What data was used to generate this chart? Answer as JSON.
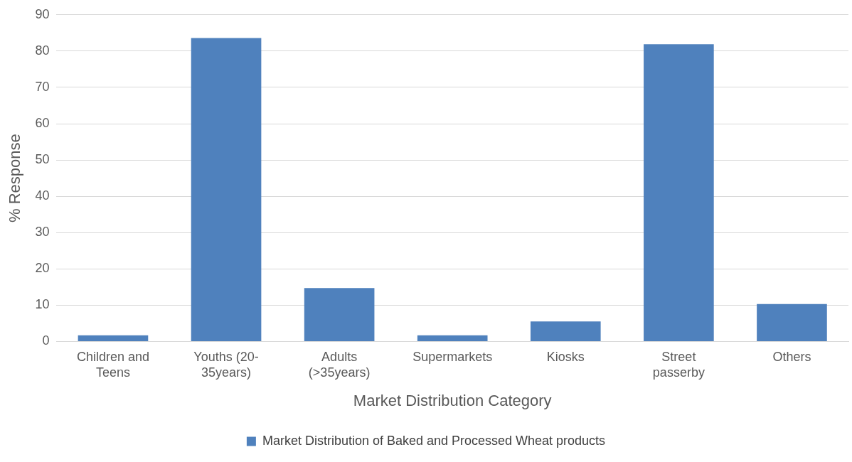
{
  "chart_data": {
    "type": "bar",
    "xlabel": "Market Distribution Category",
    "ylabel": "% Response",
    "categories": [
      "Children and Teens",
      "Youths (20-35years)",
      "Adults (>35years)",
      "Supermarkets",
      "Kiosks",
      "Street passerby",
      "Others"
    ],
    "series": [
      {
        "name": "Market Distribution of Baked and Processed Wheat products",
        "color": "#4f81bd",
        "values": [
          1.7,
          83.6,
          14.7,
          1.7,
          5.5,
          81.9,
          10.3
        ]
      }
    ],
    "ylim": [
      0,
      90
    ],
    "yticks": [
      0,
      10,
      20,
      30,
      40,
      50,
      60,
      70,
      80,
      90
    ],
    "grid": "y",
    "legend": "bottom"
  }
}
